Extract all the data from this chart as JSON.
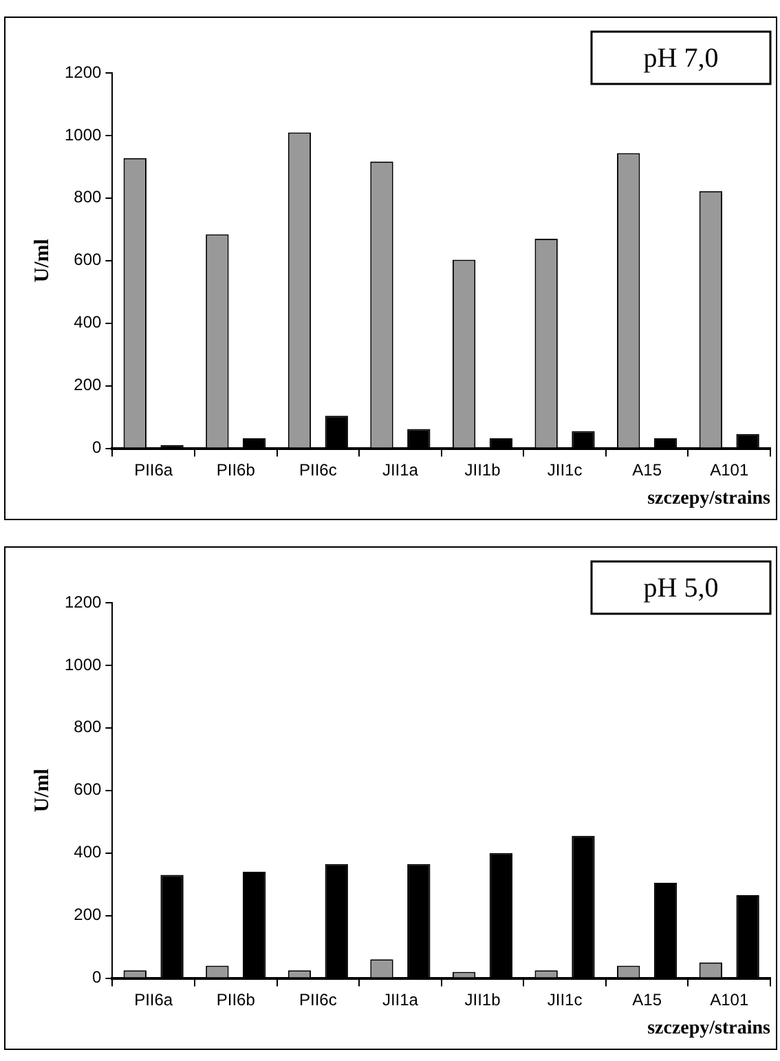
{
  "chart_data": [
    {
      "type": "bar",
      "annotations": [
        "pH 7,0"
      ],
      "xlabel": "szczepy/strains",
      "ylabel": "U/ml",
      "categories": [
        "PII6a",
        "PII6b",
        "PII6c",
        "JII1a",
        "JII1b",
        "JII1c",
        "A15",
        "A101"
      ],
      "series": [
        {
          "color": "#999999",
          "values": [
            928,
            684,
            1010,
            917,
            603,
            670,
            944,
            822
          ]
        },
        {
          "color": "#000000",
          "values": [
            10,
            32,
            104,
            62,
            32,
            55,
            32,
            46
          ]
        }
      ],
      "ylim": [
        0,
        1200
      ],
      "yticks": [
        0,
        200,
        400,
        600,
        800,
        1000,
        1200
      ],
      "grid": false,
      "legend": false
    },
    {
      "type": "bar",
      "annotations": [
        "pH 5,0"
      ],
      "xlabel": "szczepy/strains",
      "ylabel": "U/ml",
      "categories": [
        "PII6a",
        "PII6b",
        "PII6c",
        "JII1a",
        "JII1b",
        "JII1c",
        "A15",
        "A101"
      ],
      "series": [
        {
          "color": "#999999",
          "values": [
            25,
            40,
            25,
            60,
            20,
            25,
            40,
            50
          ]
        },
        {
          "color": "#000000",
          "values": [
            330,
            340,
            365,
            365,
            400,
            455,
            305,
            265
          ]
        }
      ],
      "ylim": [
        0,
        1200
      ],
      "yticks": [
        0,
        200,
        400,
        600,
        800,
        1000,
        1200
      ],
      "grid": false,
      "legend": false
    }
  ]
}
